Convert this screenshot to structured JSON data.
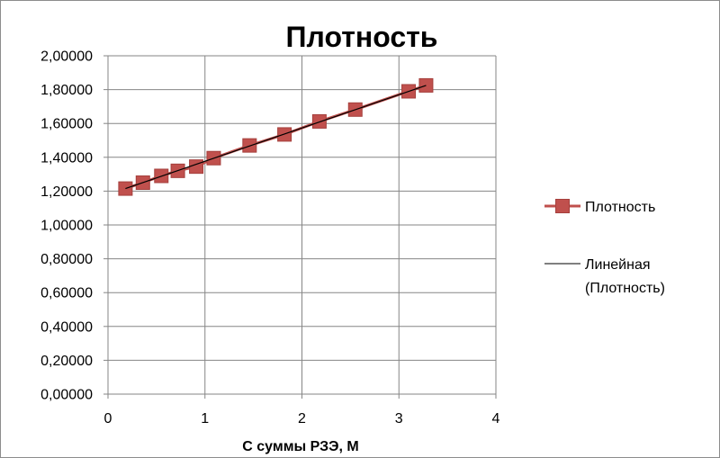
{
  "chart_data": {
    "type": "scatter",
    "title": "Плотность",
    "xlabel": "С суммы РЗЭ, М",
    "ylabel": "",
    "xlim": [
      0,
      4
    ],
    "ylim": [
      0,
      2
    ],
    "x_ticks": [
      "0",
      "1",
      "2",
      "3",
      "4"
    ],
    "y_ticks": [
      "0,00000",
      "0,20000",
      "0,40000",
      "0,60000",
      "0,80000",
      "1,00000",
      "1,20000",
      "1,40000",
      "1,60000",
      "1,80000",
      "2,00000"
    ],
    "grid": true,
    "legend_position": "right",
    "series": [
      {
        "name": "Плотность",
        "color": "#c0504d",
        "marker": "square",
        "x": [
          0.18,
          0.36,
          0.55,
          0.72,
          0.91,
          1.09,
          1.46,
          1.82,
          2.18,
          2.55,
          3.1,
          3.28
        ],
        "y": [
          1.215,
          1.25,
          1.29,
          1.32,
          1.345,
          1.395,
          1.47,
          1.535,
          1.612,
          1.682,
          1.79,
          1.825
        ]
      }
    ],
    "trendline": {
      "name": "Линейная (Плотность)",
      "name_lines": [
        "Линейная",
        "(Плотность)"
      ],
      "color": "#000000",
      "x": [
        0.18,
        3.28
      ],
      "y": [
        1.215,
        1.825
      ]
    }
  }
}
